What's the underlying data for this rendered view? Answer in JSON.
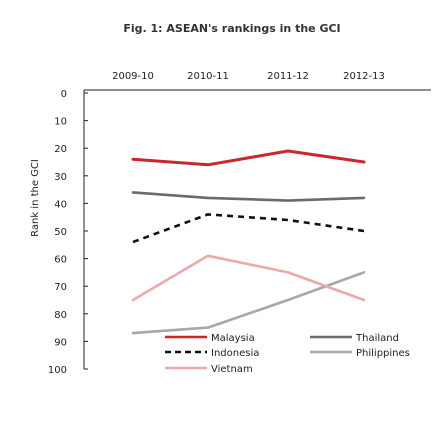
{
  "chart_data": {
    "type": "line",
    "title": "Fig. 1: ASEAN's rankings in the GCI",
    "ylabel": "Rank in the GCI",
    "categories": [
      "2009-10",
      "2010-11",
      "2011-12",
      "2012-13"
    ],
    "ylim": [
      0,
      100
    ],
    "y_inverted": true,
    "yticks": [
      0,
      10,
      20,
      30,
      40,
      50,
      60,
      70,
      80,
      90,
      100
    ],
    "series": [
      {
        "name": "Malaysia",
        "values": [
          24,
          26,
          21,
          25
        ],
        "color": "#c8282a",
        "style": "solid"
      },
      {
        "name": "Thailand",
        "values": [
          36,
          38,
          39,
          38
        ],
        "color": "#6b6b6b",
        "style": "solid"
      },
      {
        "name": "Indonesia",
        "values": [
          54,
          44,
          46,
          50
        ],
        "color": "#111111",
        "style": "dashed"
      },
      {
        "name": "Philippines",
        "values": [
          87,
          85,
          75,
          65
        ],
        "color": "#a8a8a8",
        "style": "solid"
      },
      {
        "name": "Vietnam",
        "values": [
          75,
          59,
          65,
          75
        ],
        "color": "#eaaaaa",
        "style": "solid"
      }
    ],
    "legend_position": "bottom-right",
    "grid": false
  }
}
